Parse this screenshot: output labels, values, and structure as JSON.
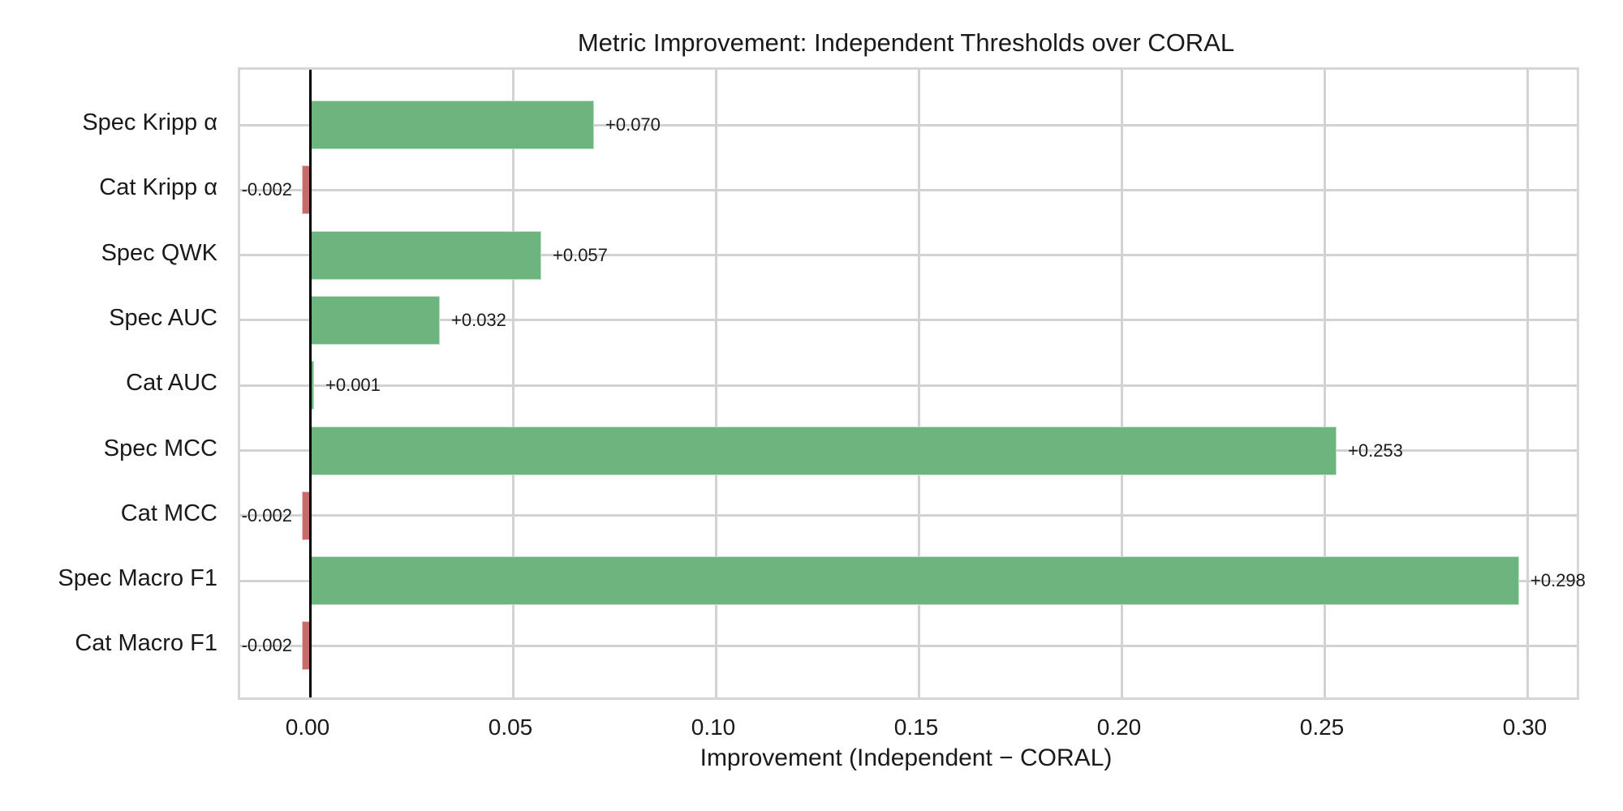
{
  "chart_data": {
    "type": "bar",
    "orientation": "horizontal",
    "title": "Metric Improvement: Independent Thresholds over CORAL",
    "xlabel": "Improvement (Independent − CORAL)",
    "ylabel": "",
    "categories": [
      "Spec Kripp α",
      "Cat Kripp α",
      "Spec QWK",
      "Spec AUC",
      "Cat AUC",
      "Spec MCC",
      "Cat MCC",
      "Spec Macro F1",
      "Cat Macro F1"
    ],
    "values": [
      0.07,
      -0.002,
      0.057,
      0.032,
      0.001,
      0.253,
      -0.002,
      0.298,
      -0.002
    ],
    "value_labels": [
      "+0.070",
      "-0.002",
      "+0.057",
      "+0.032",
      "+0.001",
      "+0.253",
      "-0.002",
      "+0.298",
      "-0.002"
    ],
    "x_tick_labels": [
      "0.00",
      "0.05",
      "0.10",
      "0.15",
      "0.20",
      "0.25",
      "0.30"
    ],
    "x_tick_values": [
      0.0,
      0.05,
      0.1,
      0.15,
      0.2,
      0.25,
      0.3
    ],
    "xlim": [
      -0.0172,
      0.3122
    ],
    "grid": true,
    "legend": "none",
    "colors": {
      "positive_bar": "#6cb57e",
      "negative_bar": "#c96a6a",
      "gridline": "#d2d2d2",
      "zero_line": "#000000",
      "text": "#1a1a1a",
      "background": "#ffffff"
    }
  }
}
